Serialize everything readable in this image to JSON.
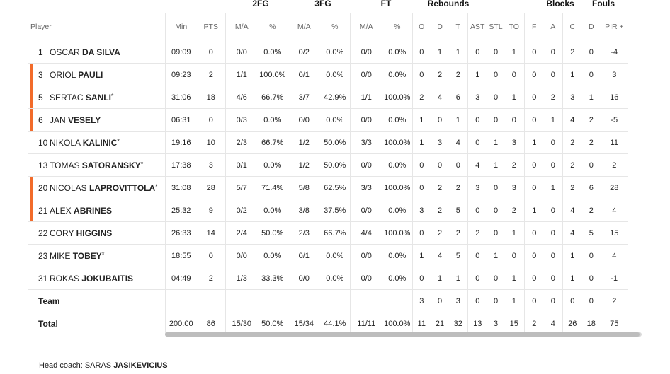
{
  "groups": {
    "fg2": "2FG",
    "fg3": "3FG",
    "ft": "FT",
    "rebounds": "Rebounds",
    "blocks": "Blocks",
    "fouls": "Fouls"
  },
  "headers": {
    "player": "Player",
    "min": "Min",
    "pts": "PTS",
    "fg2_ma": "M/A",
    "fg2_pct": "%",
    "fg3_ma": "M/A",
    "fg3_pct": "%",
    "ft_ma": "M/A",
    "ft_pct": "%",
    "reb_o": "O",
    "reb_d": "D",
    "reb_t": "T",
    "ast": "AST",
    "stl": "STL",
    "to": "TO",
    "blk_f": "F",
    "blk_a": "A",
    "foul_c": "C",
    "foul_d": "D",
    "pir": "PIR",
    "pir_plus": "+"
  },
  "players": [
    {
      "num": "1",
      "first": "Oscar",
      "last": "Da Silva",
      "starter": "",
      "highlight": false,
      "min": "09:09",
      "pts": "0",
      "fg2": "0/0",
      "fg2p": "0.0%",
      "fg3": "0/2",
      "fg3p": "0.0%",
      "ft": "0/0",
      "ftp": "0.0%",
      "o": "0",
      "d": "1",
      "t": "1",
      "ast": "0",
      "stl": "0",
      "to": "1",
      "bf": "0",
      "ba": "0",
      "fc": "2",
      "fd": "0",
      "pir": "-4"
    },
    {
      "num": "3",
      "first": "Oriol",
      "last": "Pauli",
      "starter": "",
      "highlight": true,
      "min": "09:23",
      "pts": "2",
      "fg2": "1/1",
      "fg2p": "100.0%",
      "fg3": "0/1",
      "fg3p": "0.0%",
      "ft": "0/0",
      "ftp": "0.0%",
      "o": "0",
      "d": "2",
      "t": "2",
      "ast": "1",
      "stl": "0",
      "to": "0",
      "bf": "0",
      "ba": "0",
      "fc": "1",
      "fd": "0",
      "pir": "3"
    },
    {
      "num": "5",
      "first": "Sertac",
      "last": "Sanli",
      "starter": "*",
      "highlight": true,
      "min": "31:06",
      "pts": "18",
      "fg2": "4/6",
      "fg2p": "66.7%",
      "fg3": "3/7",
      "fg3p": "42.9%",
      "ft": "1/1",
      "ftp": "100.0%",
      "o": "2",
      "d": "4",
      "t": "6",
      "ast": "3",
      "stl": "0",
      "to": "1",
      "bf": "0",
      "ba": "2",
      "fc": "3",
      "fd": "1",
      "pir": "16"
    },
    {
      "num": "6",
      "first": "Jan",
      "last": "Vesely",
      "starter": "",
      "highlight": true,
      "min": "06:31",
      "pts": "0",
      "fg2": "0/3",
      "fg2p": "0.0%",
      "fg3": "0/0",
      "fg3p": "0.0%",
      "ft": "0/0",
      "ftp": "0.0%",
      "o": "1",
      "d": "0",
      "t": "1",
      "ast": "0",
      "stl": "0",
      "to": "0",
      "bf": "0",
      "ba": "1",
      "fc": "4",
      "fd": "2",
      "pir": "-5"
    },
    {
      "num": "10",
      "first": "Nikola",
      "last": "Kalinic",
      "starter": "*",
      "highlight": false,
      "min": "19:16",
      "pts": "10",
      "fg2": "2/3",
      "fg2p": "66.7%",
      "fg3": "1/2",
      "fg3p": "50.0%",
      "ft": "3/3",
      "ftp": "100.0%",
      "o": "1",
      "d": "3",
      "t": "4",
      "ast": "0",
      "stl": "1",
      "to": "3",
      "bf": "1",
      "ba": "0",
      "fc": "2",
      "fd": "2",
      "pir": "11"
    },
    {
      "num": "13",
      "first": "Tomas",
      "last": "Satoransky",
      "starter": "*",
      "highlight": false,
      "min": "17:38",
      "pts": "3",
      "fg2": "0/1",
      "fg2p": "0.0%",
      "fg3": "1/2",
      "fg3p": "50.0%",
      "ft": "0/0",
      "ftp": "0.0%",
      "o": "0",
      "d": "0",
      "t": "0",
      "ast": "4",
      "stl": "1",
      "to": "2",
      "bf": "0",
      "ba": "0",
      "fc": "2",
      "fd": "0",
      "pir": "2"
    },
    {
      "num": "20",
      "first": "Nicolas",
      "last": "Laprovittola",
      "starter": "*",
      "highlight": true,
      "min": "31:08",
      "pts": "28",
      "fg2": "5/7",
      "fg2p": "71.4%",
      "fg3": "5/8",
      "fg3p": "62.5%",
      "ft": "3/3",
      "ftp": "100.0%",
      "o": "0",
      "d": "2",
      "t": "2",
      "ast": "3",
      "stl": "0",
      "to": "3",
      "bf": "0",
      "ba": "1",
      "fc": "2",
      "fd": "6",
      "pir": "28"
    },
    {
      "num": "21",
      "first": "Alex",
      "last": "Abrines",
      "starter": "",
      "highlight": true,
      "min": "25:32",
      "pts": "9",
      "fg2": "0/2",
      "fg2p": "0.0%",
      "fg3": "3/8",
      "fg3p": "37.5%",
      "ft": "0/0",
      "ftp": "0.0%",
      "o": "3",
      "d": "2",
      "t": "5",
      "ast": "0",
      "stl": "0",
      "to": "2",
      "bf": "1",
      "ba": "0",
      "fc": "4",
      "fd": "2",
      "pir": "4"
    },
    {
      "num": "22",
      "first": "Cory",
      "last": "Higgins",
      "starter": "",
      "highlight": false,
      "min": "26:33",
      "pts": "14",
      "fg2": "2/4",
      "fg2p": "50.0%",
      "fg3": "2/3",
      "fg3p": "66.7%",
      "ft": "4/4",
      "ftp": "100.0%",
      "o": "0",
      "d": "2",
      "t": "2",
      "ast": "2",
      "stl": "0",
      "to": "1",
      "bf": "0",
      "ba": "0",
      "fc": "4",
      "fd": "5",
      "pir": "15"
    },
    {
      "num": "23",
      "first": "Mike",
      "last": "Tobey",
      "starter": "*",
      "highlight": false,
      "min": "18:55",
      "pts": "0",
      "fg2": "0/0",
      "fg2p": "0.0%",
      "fg3": "0/1",
      "fg3p": "0.0%",
      "ft": "0/0",
      "ftp": "0.0%",
      "o": "1",
      "d": "4",
      "t": "5",
      "ast": "0",
      "stl": "1",
      "to": "0",
      "bf": "0",
      "ba": "0",
      "fc": "1",
      "fd": "0",
      "pir": "4"
    },
    {
      "num": "31",
      "first": "Rokas",
      "last": "Jokubaitis",
      "starter": "",
      "highlight": false,
      "min": "04:49",
      "pts": "2",
      "fg2": "1/3",
      "fg2p": "33.3%",
      "fg3": "0/0",
      "fg3p": "0.0%",
      "ft": "0/0",
      "ftp": "0.0%",
      "o": "0",
      "d": "1",
      "t": "1",
      "ast": "0",
      "stl": "0",
      "to": "1",
      "bf": "0",
      "ba": "0",
      "fc": "1",
      "fd": "0",
      "pir": "-1"
    }
  ],
  "team": {
    "label": "Team",
    "min": "",
    "pts": "",
    "fg2": "",
    "fg2p": "",
    "fg3": "",
    "fg3p": "",
    "ft": "",
    "ftp": "",
    "o": "3",
    "d": "0",
    "t": "3",
    "ast": "0",
    "stl": "0",
    "to": "1",
    "bf": "0",
    "ba": "0",
    "fc": "0",
    "fd": "0",
    "pir": "2"
  },
  "total": {
    "label": "Total",
    "min": "200:00",
    "pts": "86",
    "fg2": "15/30",
    "fg2p": "50.0%",
    "fg3": "15/34",
    "fg3p": "44.1%",
    "ft": "11/11",
    "ftp": "100.0%",
    "o": "11",
    "d": "21",
    "t": "32",
    "ast": "13",
    "stl": "3",
    "to": "15",
    "bf": "2",
    "ba": "4",
    "fc": "26",
    "fd": "18",
    "pir": "75"
  },
  "coach": {
    "label": "Head coach:",
    "first": "Saras",
    "last": "Jasikevicius"
  },
  "colors": {
    "highlight": "#f26b2a",
    "border": "#e6e6e6"
  }
}
